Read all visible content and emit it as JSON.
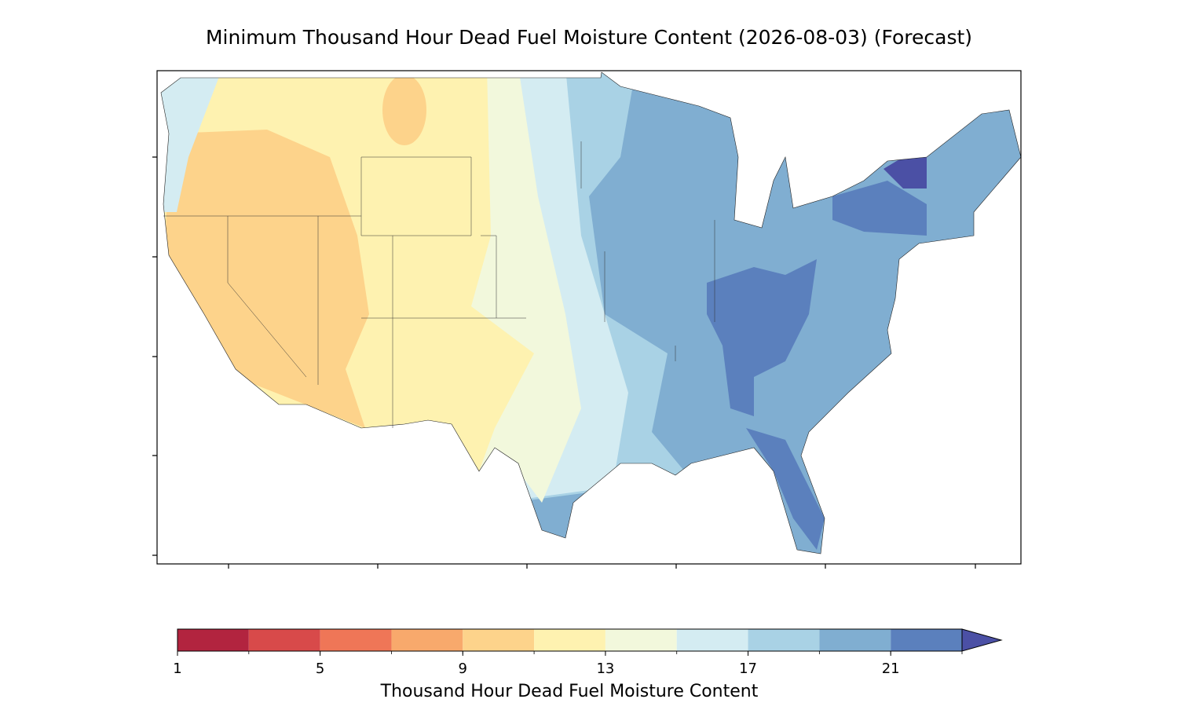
{
  "chart_data": {
    "type": "map",
    "title": "Minimum Thousand Hour Dead Fuel Moisture Content (2026-08-03) (Forecast)",
    "colorbar": {
      "label": "Thousand Hour Dead Fuel Moisture Content",
      "levels": [
        1,
        3,
        5,
        7,
        9,
        11,
        13,
        15,
        17,
        19,
        21,
        23
      ],
      "colors": [
        "#b2243f",
        "#d84a4a",
        "#ef7657",
        "#f8a96c",
        "#fdd38b",
        "#fef2b0",
        "#f2f8dc",
        "#d4ecf2",
        "#a9d2e5",
        "#80aed1",
        "#5b80bd"
      ],
      "extend_color": "#4b50a5",
      "ticks": [
        1,
        5,
        9,
        13,
        17,
        21
      ]
    }
  }
}
